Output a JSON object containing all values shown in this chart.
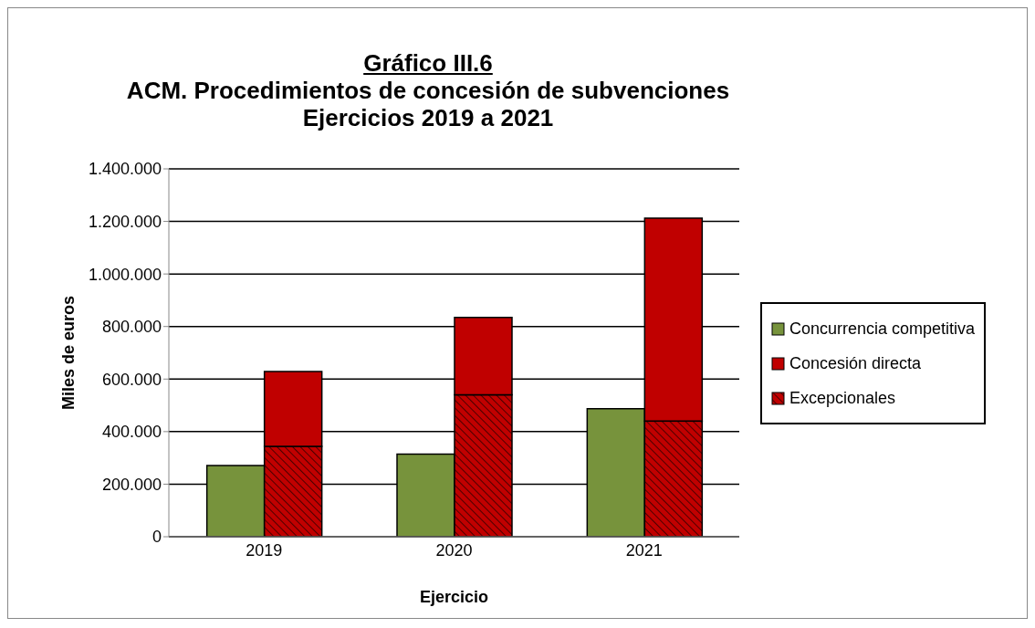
{
  "chart_data": {
    "type": "bar",
    "title": "Gráfico III.6\nACM. Procedimientos de concesión de subvenciones\nEjercicios 2019 a 2021",
    "xlabel": "Ejercicio",
    "ylabel": "Miles de euros",
    "categories": [
      "2019",
      "2020",
      "2021"
    ],
    "series": [
      {
        "name": "Concurrencia competitiva",
        "color": "#77933c",
        "values": [
          271000,
          314000,
          487000
        ]
      },
      {
        "name": "Concesión directa",
        "color": "#c00000",
        "base": [
          344000,
          540000,
          440000
        ],
        "values": [
          285000,
          295000,
          772000
        ]
      },
      {
        "name": "Excepcionales",
        "color": "#c00000",
        "values": [
          344000,
          540000,
          440000
        ]
      }
    ],
    "ylim": [
      0,
      1400000
    ],
    "yticks": [
      {
        "value": 0,
        "label": "0"
      },
      {
        "value": 200000,
        "label": "200.000"
      },
      {
        "value": 400000,
        "label": "400.000"
      },
      {
        "value": 600000,
        "label": "600.000"
      },
      {
        "value": 800000,
        "label": "800.000"
      },
      {
        "value": 1000000,
        "label": "1.000.000"
      },
      {
        "value": 1200000,
        "label": "1.200.000"
      },
      {
        "value": 1400000,
        "label": "1.400.000"
      }
    ],
    "grid": "y",
    "legend": "right"
  }
}
